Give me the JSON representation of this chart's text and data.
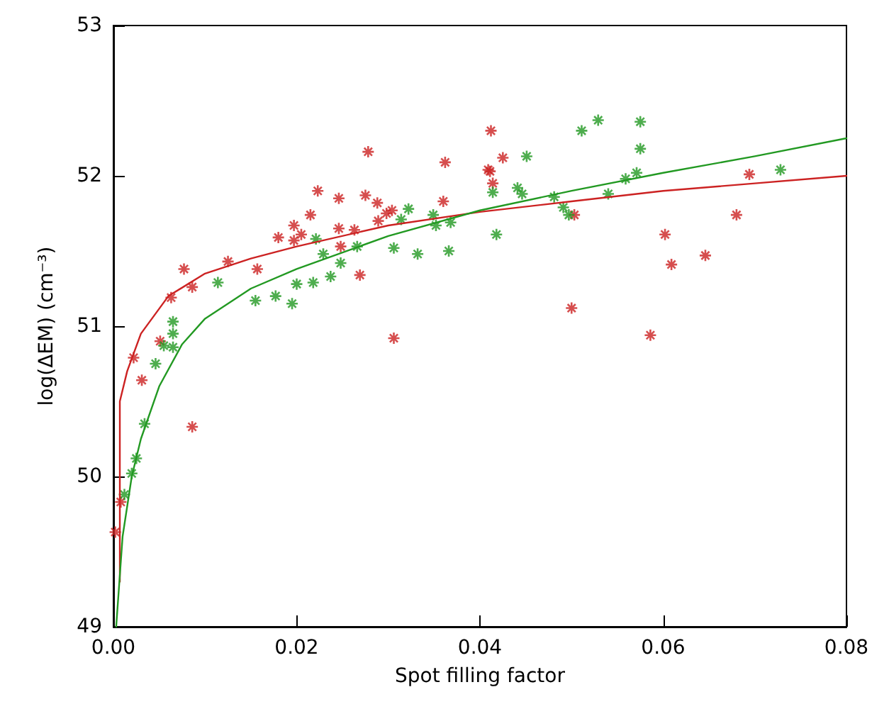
{
  "chart_data": {
    "type": "scatter",
    "xlabel": "Spot filling factor",
    "ylabel": "log(ΔEM) (cm⁻³)",
    "xlim": [
      0,
      0.08
    ],
    "ylim": [
      49,
      53
    ],
    "xticks": [
      {
        "value": 0,
        "label": "0.00"
      },
      {
        "value": 0.02,
        "label": "0.02"
      },
      {
        "value": 0.04,
        "label": "0.04"
      },
      {
        "value": 0.06,
        "label": "0.06"
      },
      {
        "value": 0.08,
        "label": "0.08"
      }
    ],
    "yticks": [
      49,
      50,
      51,
      52,
      53
    ],
    "grid": false,
    "marker": "cross",
    "series": [
      {
        "color": "#cc2222",
        "x": [
          0.0002,
          0.0008,
          0.0022,
          0.0031,
          0.0051,
          0.0063,
          0.0077,
          0.0086,
          0.0086,
          0.0125,
          0.0157,
          0.018,
          0.0197,
          0.0197,
          0.0205,
          0.0215,
          0.0223,
          0.0246,
          0.0246,
          0.0248,
          0.0263,
          0.0269,
          0.0275,
          0.0278,
          0.0288,
          0.0289,
          0.0298,
          0.0304,
          0.0306,
          0.036,
          0.0362,
          0.0409,
          0.0411,
          0.0412,
          0.0414,
          0.0425,
          0.05,
          0.0503,
          0.0586,
          0.0602,
          0.0609,
          0.0646,
          0.068,
          0.0694
        ],
        "values": [
          49.63,
          49.83,
          50.79,
          50.64,
          50.9,
          51.19,
          51.38,
          51.26,
          50.33,
          51.43,
          51.38,
          51.59,
          51.57,
          51.67,
          51.61,
          51.74,
          51.9,
          51.85,
          51.65,
          51.53,
          51.64,
          51.34,
          51.87,
          52.16,
          51.82,
          51.7,
          51.75,
          51.77,
          50.92,
          51.83,
          52.09,
          52.04,
          52.03,
          52.3,
          51.95,
          52.12,
          51.12,
          51.74,
          50.94,
          51.61,
          51.41,
          51.47,
          51.74,
          52.01
        ]
      },
      {
        "color": "#229922",
        "x": [
          0.0012,
          0.002,
          0.0025,
          0.0034,
          0.0046,
          0.0055,
          0.0065,
          0.0065,
          0.0065,
          0.0114,
          0.0155,
          0.0177,
          0.0195,
          0.02,
          0.0218,
          0.0221,
          0.0229,
          0.0237,
          0.0248,
          0.0266,
          0.0306,
          0.0314,
          0.0322,
          0.0332,
          0.0349,
          0.0352,
          0.0366,
          0.0368,
          0.0414,
          0.0418,
          0.0441,
          0.0446,
          0.0451,
          0.0481,
          0.0491,
          0.0497,
          0.0511,
          0.0529,
          0.054,
          0.0559,
          0.0571,
          0.0575,
          0.0575,
          0.0728
        ],
        "values": [
          49.88,
          50.02,
          50.12,
          50.35,
          50.75,
          50.87,
          50.86,
          50.95,
          51.03,
          51.29,
          51.17,
          51.2,
          51.15,
          51.28,
          51.29,
          51.58,
          51.48,
          51.33,
          51.42,
          51.53,
          51.52,
          51.71,
          51.78,
          51.48,
          51.74,
          51.67,
          51.5,
          51.69,
          51.89,
          51.61,
          51.92,
          51.88,
          52.13,
          51.86,
          51.79,
          51.74,
          52.3,
          52.37,
          51.88,
          51.98,
          52.02,
          52.36,
          52.18,
          52.04
        ]
      },
      {
        "type": "line",
        "color": "#cc2222",
        "marker": "none",
        "x": [
          0.0007,
          0.0007,
          0.0015,
          0.003,
          0.006,
          0.01,
          0.015,
          0.02,
          0.03,
          0.04,
          0.05,
          0.06,
          0.07,
          0.08
        ],
        "values": [
          49.3,
          50.5,
          50.7,
          50.95,
          51.2,
          51.35,
          51.45,
          51.53,
          51.67,
          51.76,
          51.83,
          51.9,
          51.95,
          52.0
        ]
      },
      {
        "type": "line",
        "color": "#229922",
        "marker": "none",
        "x": [
          0.0003,
          0.001,
          0.002,
          0.003,
          0.005,
          0.0075,
          0.01,
          0.015,
          0.02,
          0.03,
          0.04,
          0.05,
          0.06,
          0.07,
          0.08
        ],
        "values": [
          49.0,
          49.6,
          50.0,
          50.25,
          50.6,
          50.88,
          51.05,
          51.25,
          51.38,
          51.6,
          51.77,
          51.9,
          52.02,
          52.13,
          52.25
        ]
      }
    ]
  }
}
